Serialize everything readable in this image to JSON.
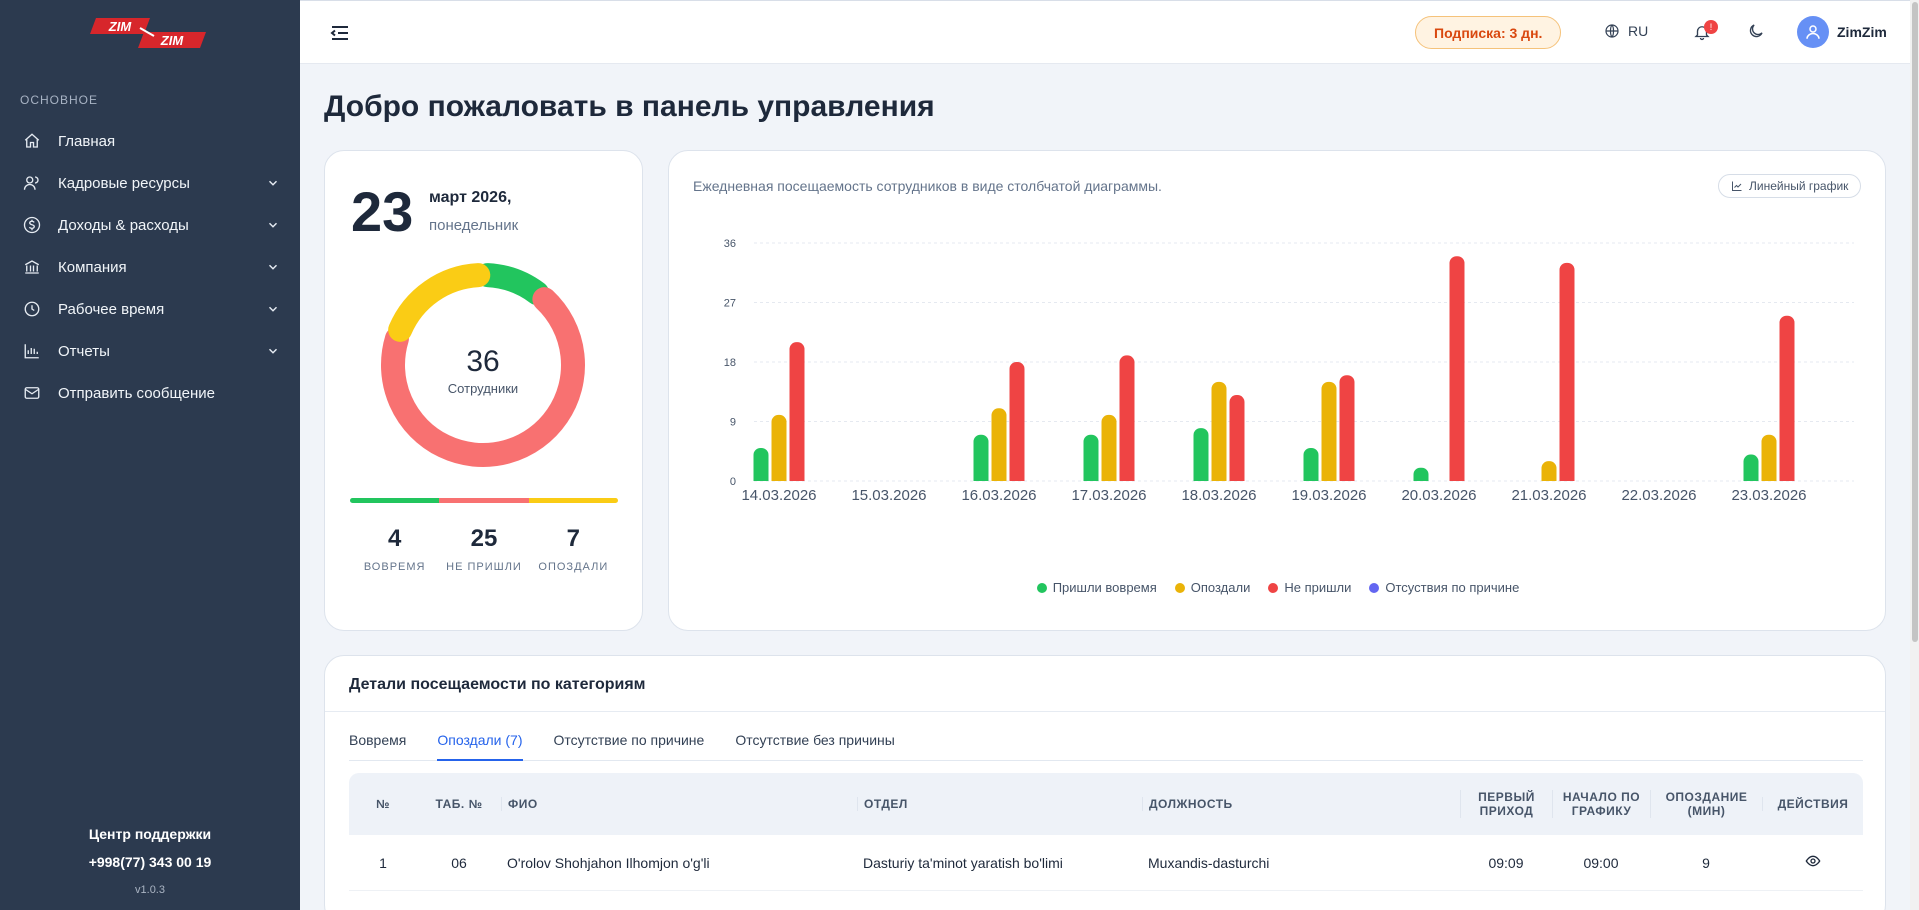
{
  "sidebar": {
    "logo_text": "ZIM-ZIM",
    "section_title": "ОСНОВНОЕ",
    "items": [
      {
        "label": "Главная",
        "icon": "home-icon"
      },
      {
        "label": "Кадровые ресурсы",
        "icon": "users-icon"
      },
      {
        "label": "Доходы & расходы",
        "icon": "dollar-icon"
      },
      {
        "label": "Компания",
        "icon": "bank-icon"
      },
      {
        "label": "Рабочее время",
        "icon": "clock-icon"
      },
      {
        "label": "Отчеты",
        "icon": "chart-icon"
      },
      {
        "label": "Отправить сообщение",
        "icon": "mail-icon"
      }
    ],
    "support_title": "Центр поддержки",
    "support_phone": "+998(77) 343 00 19",
    "version": "v1.0.3"
  },
  "header": {
    "subscription": "Подписка: 3 дн.",
    "language": "RU",
    "notifications_count": "!",
    "user_name": "ZimZim"
  },
  "page": {
    "title": "Добро пожаловать в панель управления"
  },
  "date_card": {
    "day": "23",
    "month_year": "март 2026,",
    "weekday": "понедельник",
    "total": "36",
    "total_label": "Сотрудники",
    "stats": [
      {
        "value": "4",
        "label": "ВОВРЕМЯ"
      },
      {
        "value": "25",
        "label": "НЕ ПРИШЛИ"
      },
      {
        "value": "7",
        "label": "ОПОЗДАЛИ"
      }
    ],
    "colors": {
      "ontime": "#22c55e",
      "absent": "#f87171",
      "late": "#facc15"
    }
  },
  "chart": {
    "title": "Ежедневная посещаемость сотрудников в виде столбчатой диаграммы.",
    "toggle_label": "Линейный график"
  },
  "chart_data": {
    "type": "bar",
    "categories": [
      "14.03.2026",
      "15.03.2026",
      "16.03.2026",
      "17.03.2026",
      "18.03.2026",
      "19.03.2026",
      "20.03.2026",
      "21.03.2026",
      "22.03.2026",
      "23.03.2026"
    ],
    "series": [
      {
        "name": "Пришли вовремя",
        "color": "#22c55e",
        "values": [
          5,
          0,
          7,
          7,
          8,
          5,
          2,
          0,
          0,
          4
        ]
      },
      {
        "name": "Опоздали",
        "color": "#eab308",
        "values": [
          10,
          0,
          11,
          10,
          15,
          15,
          0,
          3,
          0,
          7
        ]
      },
      {
        "name": "Не пришли",
        "color": "#ef4444",
        "values": [
          21,
          0,
          18,
          19,
          13,
          16,
          34,
          33,
          0,
          25
        ]
      },
      {
        "name": "Отсуствия по причине",
        "color": "#6366f1",
        "values": [
          0,
          0,
          0,
          0,
          0,
          0,
          0,
          0,
          0,
          0
        ]
      }
    ],
    "yticks": [
      0,
      9,
      18,
      27,
      36
    ],
    "ylim": [
      0,
      36
    ],
    "grid": true,
    "legend": "bottom-center"
  },
  "details": {
    "title": "Детали посещаемости по категориям",
    "tabs": [
      "Вовремя",
      "Опоздали (7)",
      "Отсутствие по причине",
      "Отсутствие без причины"
    ],
    "active_tab": 1,
    "columns": [
      "№",
      "ТАБ. №",
      "ФИО",
      "ОТДЕЛ",
      "ДОЛЖНОСТЬ",
      "ПЕРВЫЙ ПРИХОД",
      "НАЧАЛО ПО ГРАФИКУ",
      "ОПОЗДАНИЕ (МИН)",
      "ДЕЙСТВИЯ"
    ],
    "rows": [
      {
        "n": "1",
        "tab": "06",
        "name": "O'rolov Shohjahon Ilhomjon o'g'li",
        "dept": "Dasturiy ta'minot yaratish bo'limi",
        "position": "Muxandis-dasturchi",
        "first": "09:09",
        "start": "09:00",
        "late": "9"
      }
    ]
  }
}
